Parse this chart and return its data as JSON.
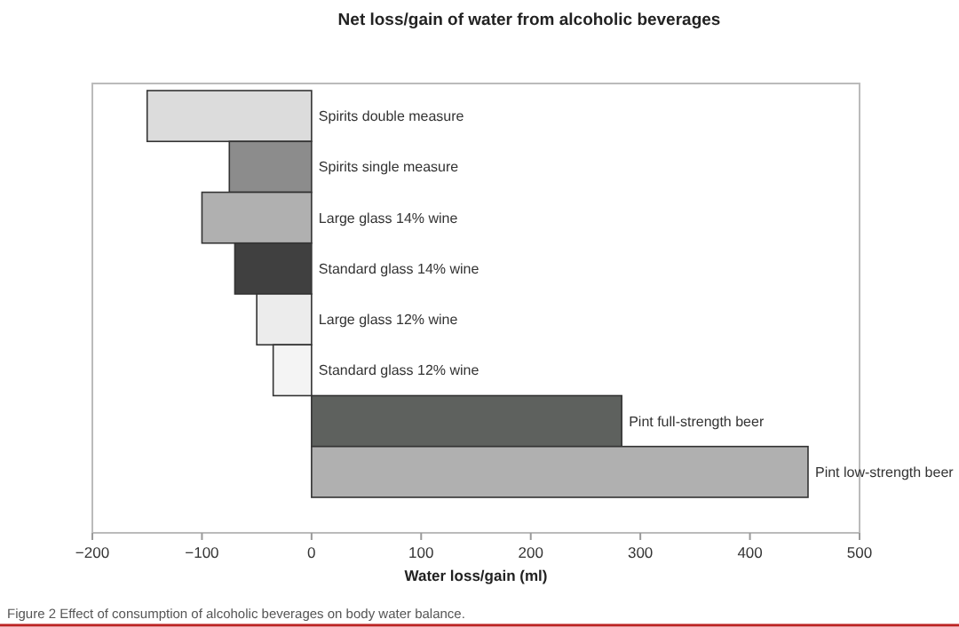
{
  "chart_data": {
    "type": "bar",
    "orientation": "horizontal",
    "title": "Net loss/gain of water from alcoholic beverages",
    "xlabel": "Water loss/gain (ml)",
    "categories": [
      "Spirits double measure",
      "Spirits single measure",
      "Large glass 14% wine",
      "Standard glass 14% wine",
      "Large glass 12% wine",
      "Standard glass 12% wine",
      "Pint full-strength beer",
      "Pint low-strength beer"
    ],
    "values": [
      -150,
      -75,
      -100,
      -70,
      -50,
      -35,
      283,
      453
    ],
    "colors": [
      "#dcdcdc",
      "#8c8c8c",
      "#b0b0b0",
      "#404040",
      "#ececec",
      "#f4f4f4",
      "#5e615e",
      "#b0b0b0"
    ],
    "xlim": [
      -200,
      500
    ],
    "xticks": [
      {
        "value": -200,
        "label": "−200"
      },
      {
        "value": -100,
        "label": "−100"
      },
      0,
      100,
      200,
      300,
      400,
      500
    ],
    "annotations": [
      "Figure 2 Effect of consumption of alcoholic beverages on body water balance."
    ]
  }
}
